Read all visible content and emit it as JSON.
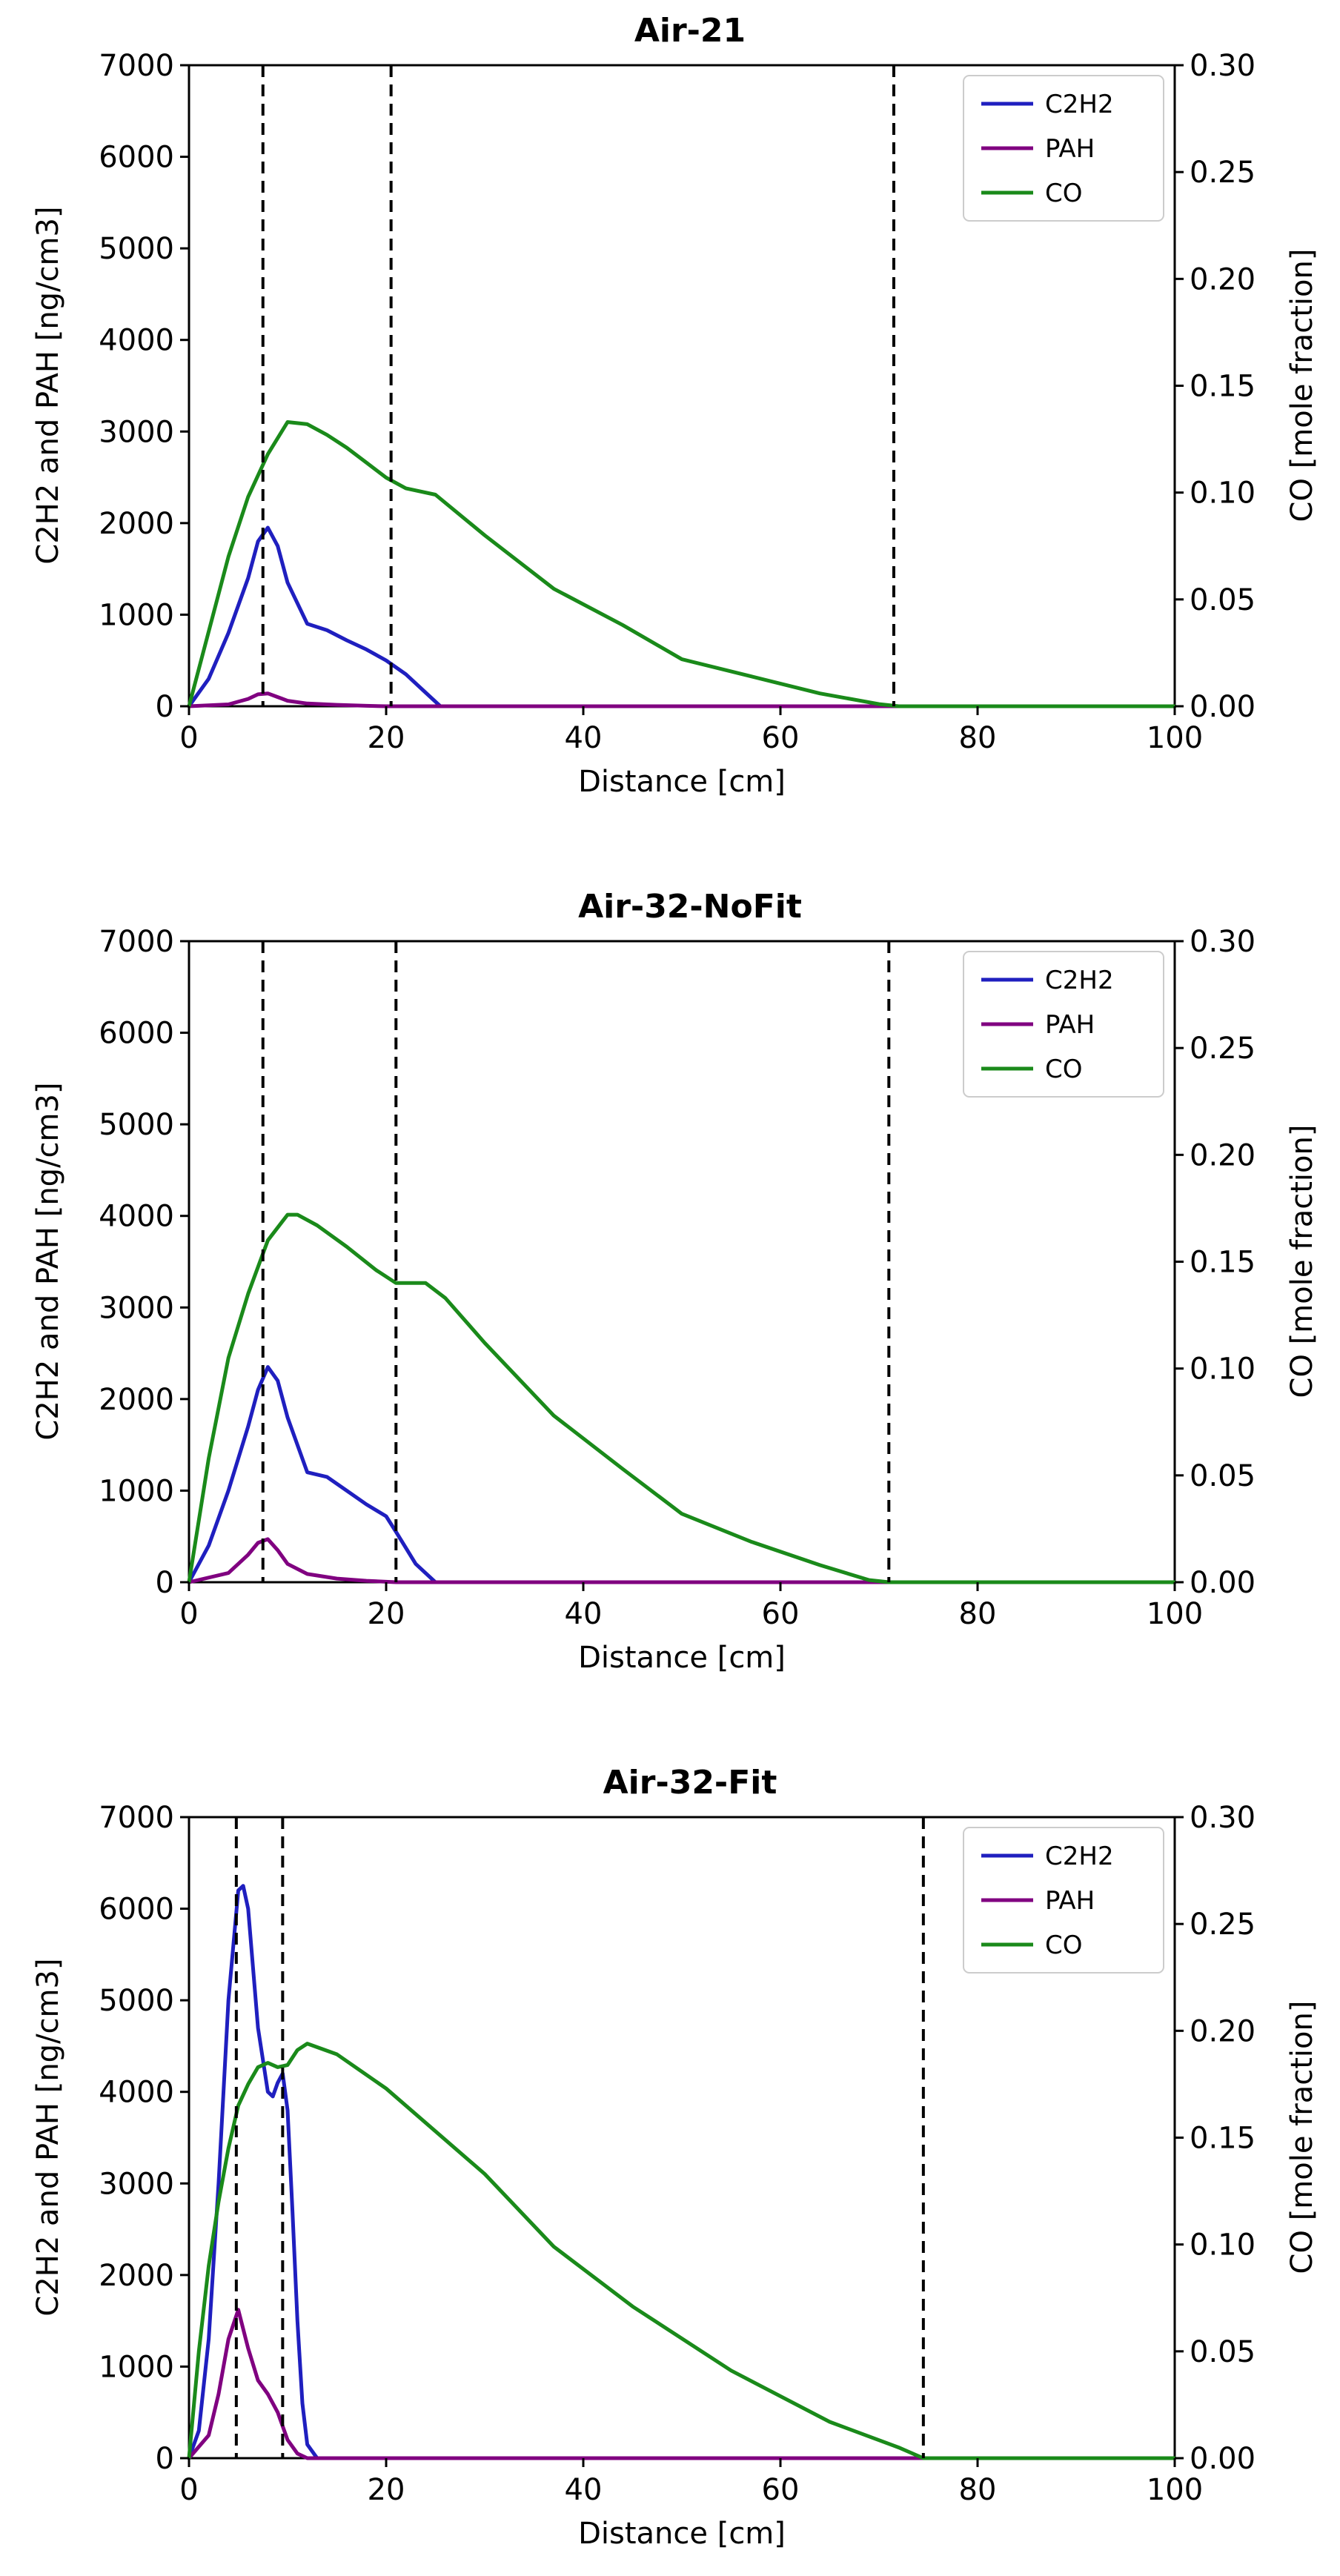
{
  "chart_data": [
    {
      "type": "line",
      "title": "Air-21",
      "xlabel": "Distance [cm]",
      "ylabel": "C2H2 and PAH [ng/cm3]",
      "y2label": "CO [mole fraction]",
      "xlim": [
        0,
        100
      ],
      "ylim": [
        0,
        7000
      ],
      "y2lim": [
        0,
        0.3
      ],
      "xticks": [
        "0",
        "20",
        "40",
        "60",
        "80",
        "100"
      ],
      "yticks": [
        "0",
        "1000",
        "2000",
        "3000",
        "4000",
        "5000",
        "6000",
        "7000"
      ],
      "y2ticks": [
        "0.00",
        "0.05",
        "0.10",
        "0.15",
        "0.20",
        "0.25",
        "0.30"
      ],
      "legend_position": "top-right",
      "vlines": [
        7.5,
        20.5,
        71.5
      ],
      "series": [
        {
          "name": "C2H2",
          "axis": "left",
          "color": "#1f1fbf",
          "x": [
            0,
            2,
            4,
            6,
            7,
            8,
            9,
            10,
            12,
            14,
            16,
            18,
            20,
            22,
            24,
            25.5,
            100
          ],
          "y": [
            0,
            300,
            800,
            1400,
            1800,
            1950,
            1750,
            1350,
            900,
            830,
            720,
            620,
            500,
            350,
            150,
            0,
            0
          ]
        },
        {
          "name": "PAH",
          "axis": "left",
          "color": "#800080",
          "x": [
            0,
            4,
            6,
            7,
            8,
            9,
            10,
            12,
            15,
            18,
            20,
            100
          ],
          "y": [
            0,
            20,
            80,
            130,
            140,
            100,
            60,
            30,
            15,
            5,
            0,
            0
          ]
        },
        {
          "name": "CO",
          "axis": "right",
          "color": "#1a8a1a",
          "x": [
            0,
            2,
            4,
            6,
            8,
            10,
            12,
            14,
            16,
            18,
            20,
            22,
            25,
            30,
            37,
            44,
            50,
            57,
            64,
            70,
            72,
            80,
            100
          ],
          "y": [
            0,
            0.035,
            0.07,
            0.098,
            0.118,
            0.133,
            0.132,
            0.127,
            0.121,
            0.114,
            0.107,
            0.102,
            0.099,
            0.08,
            0.055,
            0.038,
            0.022,
            0.014,
            0.006,
            0.001,
            0,
            0,
            0
          ]
        }
      ]
    },
    {
      "type": "line",
      "title": "Air-32-NoFit",
      "xlabel": "Distance [cm]",
      "ylabel": "C2H2 and PAH [ng/cm3]",
      "y2label": "CO [mole fraction]",
      "xlim": [
        0,
        100
      ],
      "ylim": [
        0,
        7000
      ],
      "y2lim": [
        0,
        0.3
      ],
      "xticks": [
        "0",
        "20",
        "40",
        "60",
        "80",
        "100"
      ],
      "yticks": [
        "0",
        "1000",
        "2000",
        "3000",
        "4000",
        "5000",
        "6000",
        "7000"
      ],
      "y2ticks": [
        "0.00",
        "0.05",
        "0.10",
        "0.15",
        "0.20",
        "0.25",
        "0.30"
      ],
      "legend_position": "top-right",
      "vlines": [
        7.5,
        21,
        71
      ],
      "series": [
        {
          "name": "C2H2",
          "axis": "left",
          "color": "#1f1fbf",
          "x": [
            0,
            2,
            4,
            6,
            7,
            8,
            9,
            10,
            12,
            14,
            16,
            18,
            20,
            21,
            23,
            25,
            100
          ],
          "y": [
            0,
            400,
            1000,
            1700,
            2100,
            2350,
            2200,
            1800,
            1200,
            1150,
            1000,
            850,
            720,
            550,
            200,
            0,
            0
          ]
        },
        {
          "name": "PAH",
          "axis": "left",
          "color": "#800080",
          "x": [
            0,
            4,
            6,
            7,
            8,
            9,
            10,
            12,
            15,
            18,
            21,
            100
          ],
          "y": [
            0,
            100,
            300,
            430,
            470,
            350,
            200,
            90,
            40,
            15,
            0,
            0
          ]
        },
        {
          "name": "CO",
          "axis": "right",
          "color": "#1a8a1a",
          "x": [
            0,
            2,
            4,
            6,
            8,
            10,
            11,
            13,
            16,
            19,
            21,
            24,
            26,
            30,
            37,
            44,
            50,
            57,
            64,
            69,
            71,
            80,
            100
          ],
          "y": [
            0,
            0.058,
            0.105,
            0.135,
            0.16,
            0.172,
            0.172,
            0.167,
            0.157,
            0.146,
            0.14,
            0.14,
            0.133,
            0.112,
            0.078,
            0.053,
            0.032,
            0.019,
            0.008,
            0.001,
            0,
            0,
            0
          ]
        }
      ]
    },
    {
      "type": "line",
      "title": "Air-32-Fit",
      "xlabel": "Distance [cm]",
      "ylabel": "C2H2 and PAH [ng/cm3]",
      "y2label": "CO [mole fraction]",
      "xlim": [
        0,
        100
      ],
      "ylim": [
        0,
        7000
      ],
      "y2lim": [
        0,
        0.3
      ],
      "xticks": [
        "0",
        "20",
        "40",
        "60",
        "80",
        "100"
      ],
      "yticks": [
        "0",
        "1000",
        "2000",
        "3000",
        "4000",
        "5000",
        "6000",
        "7000"
      ],
      "y2ticks": [
        "0.00",
        "0.05",
        "0.10",
        "0.15",
        "0.20",
        "0.25",
        "0.30"
      ],
      "legend_position": "top-right",
      "vlines": [
        4.8,
        9.5,
        74.5
      ],
      "series": [
        {
          "name": "C2H2",
          "axis": "left",
          "color": "#1f1fbf",
          "x": [
            0,
            1,
            2,
            3,
            4,
            5,
            5.5,
            6,
            7,
            8,
            8.5,
            9,
            9.5,
            10,
            10.5,
            11,
            11.5,
            12,
            13,
            100
          ],
          "y": [
            0,
            300,
            1300,
            3000,
            5000,
            6200,
            6250,
            6000,
            4700,
            4000,
            3950,
            4100,
            4200,
            3800,
            2700,
            1500,
            600,
            150,
            0,
            0
          ]
        },
        {
          "name": "PAH",
          "axis": "left",
          "color": "#800080",
          "x": [
            0,
            2,
            3,
            4,
            5,
            6,
            7,
            8,
            9,
            10,
            11,
            12,
            100
          ],
          "y": [
            0,
            250,
            700,
            1300,
            1620,
            1200,
            850,
            700,
            500,
            200,
            50,
            0,
            0
          ]
        },
        {
          "name": "CO",
          "axis": "right",
          "color": "#1a8a1a",
          "x": [
            0,
            1,
            2,
            3,
            4,
            5,
            6,
            7,
            8,
            9,
            10,
            11,
            12,
            15,
            20,
            30,
            37,
            45,
            55,
            65,
            72,
            74.5,
            80,
            100
          ],
          "y": [
            0,
            0.05,
            0.09,
            0.12,
            0.145,
            0.165,
            0.175,
            0.183,
            0.185,
            0.183,
            0.184,
            0.191,
            0.194,
            0.189,
            0.173,
            0.133,
            0.099,
            0.071,
            0.041,
            0.017,
            0.005,
            0,
            0,
            0
          ]
        }
      ]
    }
  ]
}
